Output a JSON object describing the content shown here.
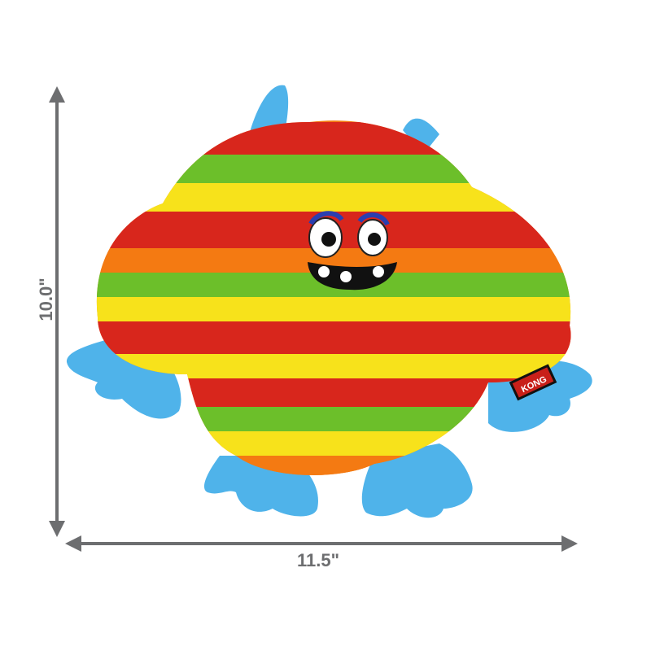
{
  "dimensions": {
    "height_label": "10.0\"",
    "width_label": "11.5\""
  },
  "product": {
    "brand_tag": "KONG"
  },
  "colors": {
    "arrow": "#6d6e70",
    "feet": "#4fb3ea",
    "fur": [
      "#d8261c",
      "#f47a12",
      "#f7e21b",
      "#6cbf2a"
    ]
  }
}
